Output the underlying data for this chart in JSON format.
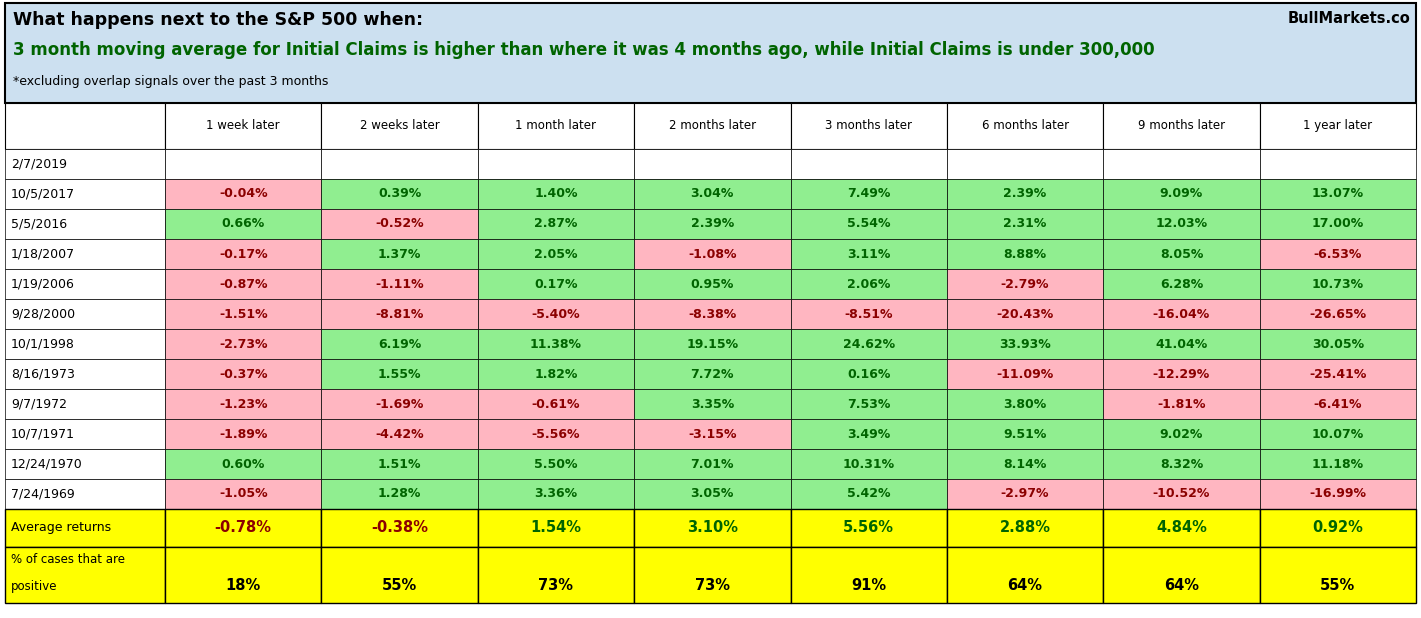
{
  "title_line1": "What happens next to the S&P 500 when:",
  "title_line2": "3 month moving average for Initial Claims is higher than where it was 4 months ago, while Initial Claims is under 300,000",
  "title_line3": "*excluding overlap signals over the past 3 months",
  "watermark": "BullMarkets.co",
  "col_headers": [
    "1 week later",
    "2 weeks later",
    "1 month later",
    "2 months later",
    "3 months later",
    "6 months later",
    "9 months later",
    "1 year later"
  ],
  "row_labels": [
    "2/7/2019",
    "10/5/2017",
    "5/5/2016",
    "1/18/2007",
    "1/19/2006",
    "9/28/2000",
    "10/1/1998",
    "8/16/1973",
    "9/7/1972",
    "10/7/1971",
    "12/24/1970",
    "7/24/1969"
  ],
  "data": [
    [
      null,
      null,
      null,
      null,
      null,
      null,
      null,
      null
    ],
    [
      "-0.04%",
      "0.39%",
      "1.40%",
      "3.04%",
      "7.49%",
      "2.39%",
      "9.09%",
      "13.07%"
    ],
    [
      "0.66%",
      "-0.52%",
      "2.87%",
      "2.39%",
      "5.54%",
      "2.31%",
      "12.03%",
      "17.00%"
    ],
    [
      "-0.17%",
      "1.37%",
      "2.05%",
      "-1.08%",
      "3.11%",
      "8.88%",
      "8.05%",
      "-6.53%"
    ],
    [
      "-0.87%",
      "-1.11%",
      "0.17%",
      "0.95%",
      "2.06%",
      "-2.79%",
      "6.28%",
      "10.73%"
    ],
    [
      "-1.51%",
      "-8.81%",
      "-5.40%",
      "-8.38%",
      "-8.51%",
      "-20.43%",
      "-16.04%",
      "-26.65%"
    ],
    [
      "-2.73%",
      "6.19%",
      "11.38%",
      "19.15%",
      "24.62%",
      "33.93%",
      "41.04%",
      "30.05%"
    ],
    [
      "-0.37%",
      "1.55%",
      "1.82%",
      "7.72%",
      "0.16%",
      "-11.09%",
      "-12.29%",
      "-25.41%"
    ],
    [
      "-1.23%",
      "-1.69%",
      "-0.61%",
      "3.35%",
      "7.53%",
      "3.80%",
      "-1.81%",
      "-6.41%"
    ],
    [
      "-1.89%",
      "-4.42%",
      "-5.56%",
      "-3.15%",
      "3.49%",
      "9.51%",
      "9.02%",
      "10.07%"
    ],
    [
      "0.60%",
      "1.51%",
      "5.50%",
      "7.01%",
      "10.31%",
      "8.14%",
      "8.32%",
      "11.18%"
    ],
    [
      "-1.05%",
      "1.28%",
      "3.36%",
      "3.05%",
      "5.42%",
      "-2.97%",
      "-10.52%",
      "-16.99%"
    ]
  ],
  "avg_returns": [
    "-0.78%",
    "-0.38%",
    "1.54%",
    "3.10%",
    "5.56%",
    "2.88%",
    "4.84%",
    "0.92%"
  ],
  "pct_positive": [
    "18%",
    "55%",
    "73%",
    "73%",
    "91%",
    "64%",
    "64%",
    "55%"
  ],
  "title_bg": "#cce0f0",
  "positive_color": "#90EE90",
  "negative_color": "#FFB6C1",
  "avg_bg": "#FFFF00",
  "border_color": "#000000",
  "white_bg": "#FFFFFF",
  "pos_text": "#006400",
  "neg_text": "#8B0000"
}
